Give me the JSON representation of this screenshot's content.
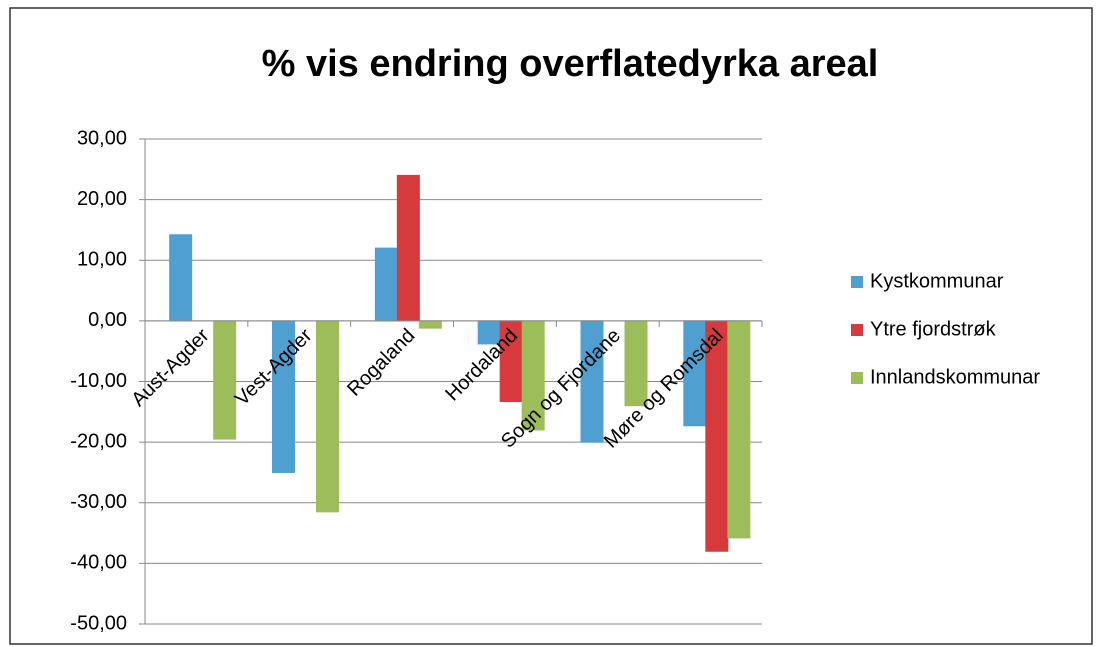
{
  "chart_data": {
    "type": "bar",
    "title": "% vis endring overflatedyrka areal",
    "categories": [
      "Aust-Agder",
      "Vest-Agder",
      "Rogaland",
      "Hordaland",
      "Sogn og Fjordane",
      "Møre og Romsdal"
    ],
    "series": [
      {
        "name": "Kystkommunar",
        "color": "#4f9fd0",
        "values": [
          14.2,
          -25,
          12,
          -3.8,
          -20,
          -17.3
        ]
      },
      {
        "name": "Ytre fjordstrøk",
        "color": "#d63a3c",
        "values": [
          null,
          null,
          24,
          -13.3,
          null,
          -38
        ]
      },
      {
        "name": "Innlandskommunar",
        "color": "#9cbd5a",
        "values": [
          -19.5,
          -31.5,
          -1.2,
          -18,
          -14,
          -35.8
        ]
      }
    ],
    "ylim": [
      -50,
      30
    ],
    "yticks": [
      {
        "value": 30,
        "label": "30,00"
      },
      {
        "value": 20,
        "label": "20,00"
      },
      {
        "value": 10,
        "label": "10,00"
      },
      {
        "value": 0,
        "label": "0,00"
      },
      {
        "value": -10,
        "label": "-10,00"
      },
      {
        "value": -20,
        "label": "-20,00"
      },
      {
        "value": -30,
        "label": "-30,00"
      },
      {
        "value": -40,
        "label": "-40,00"
      },
      {
        "value": -50,
        "label": "-50,00"
      }
    ],
    "grid": true,
    "legend": "right"
  }
}
